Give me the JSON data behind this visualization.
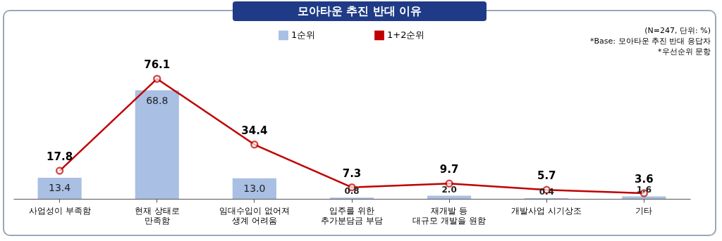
{
  "chart_data": {
    "type": "bar",
    "title": "모아타운 추진 반대 이유",
    "categories": [
      "사업성이 부족함",
      "현재 상태로\n만족함",
      "임대수입이 없어져\n생계 어려움",
      "입주를 위한\n추가분담금 부담",
      "재개발 등\n대규모 개발을 원함",
      "개발사업 시기상조",
      "기타"
    ],
    "series": [
      {
        "name": "1순위",
        "type": "bar",
        "color": "#a9bfe3",
        "values": [
          13.4,
          68.8,
          13.0,
          0.8,
          2.0,
          0.4,
          1.6
        ],
        "value_labels": [
          "13.4",
          "68.8",
          "13.0",
          "0.8",
          "2.0",
          "0.4",
          "1.6"
        ]
      },
      {
        "name": "1+2순위",
        "type": "line",
        "color": "#c00000",
        "values": [
          17.8,
          76.1,
          34.4,
          7.3,
          9.7,
          5.7,
          3.6
        ],
        "value_labels": [
          "17.8",
          "76.1",
          "34.4",
          "7.3",
          "9.7",
          "5.7",
          "3.6"
        ]
      }
    ],
    "annotations": [
      "(N=247, 단위: %)",
      "*Base: 모아타운 추진 반대 응답자",
      "*우선순위 문항"
    ],
    "legend": "top",
    "marker": "circle"
  }
}
